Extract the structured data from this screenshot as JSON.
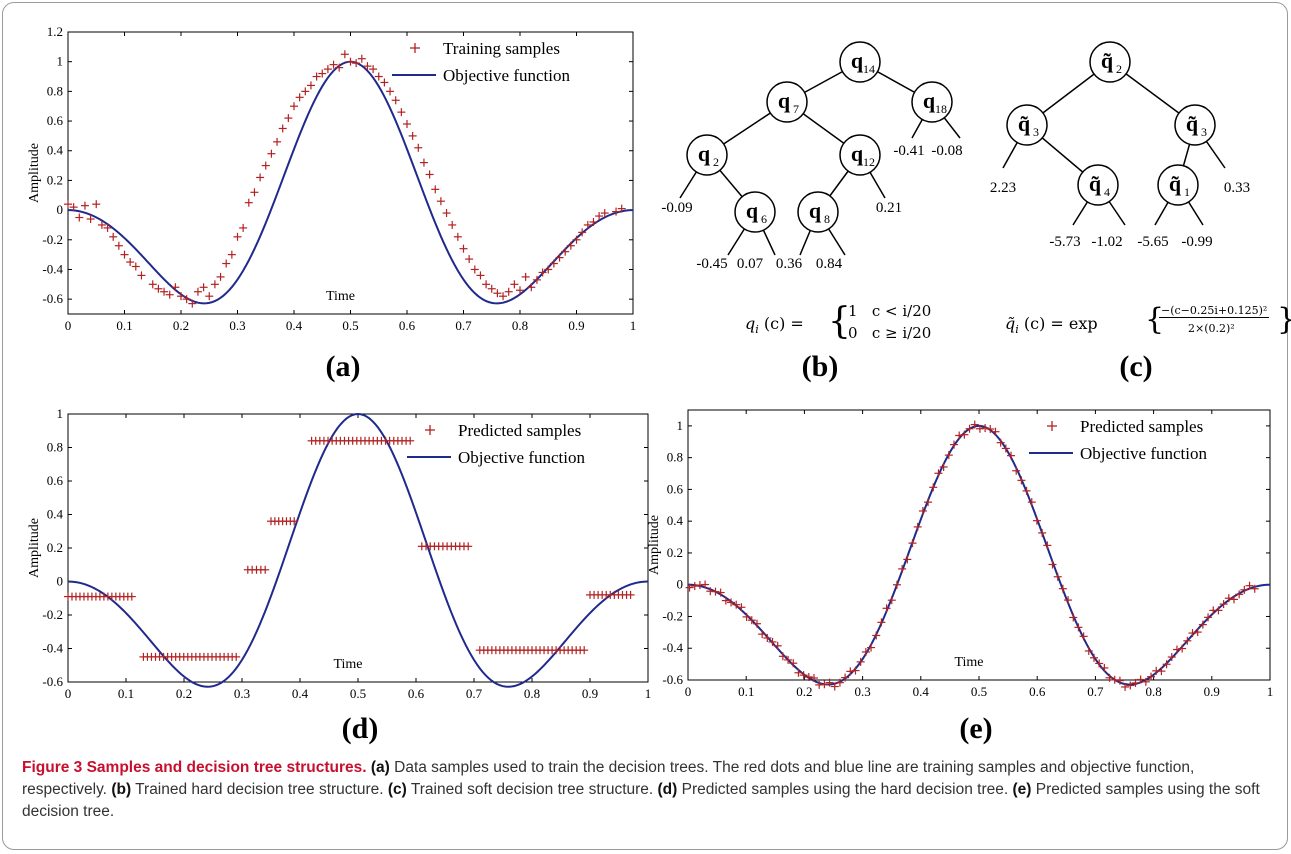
{
  "panels": {
    "a": {
      "label": "(a)"
    },
    "b": {
      "label": "(b)"
    },
    "c": {
      "label": "(c)"
    },
    "d": {
      "label": "(d)"
    },
    "e": {
      "label": "(e)"
    }
  },
  "chart_data": [
    {
      "id": "a",
      "type": "scatter",
      "xlabel": "Time",
      "ylabel": "Amplitude",
      "xlim": [
        0,
        1
      ],
      "ylim": [
        -0.7,
        1.2
      ],
      "xticks": [
        "0",
        "0.1",
        "0.2",
        "0.3",
        "0.4",
        "0.5",
        "0.6",
        "0.7",
        "0.8",
        "0.9",
        "1"
      ],
      "yticks": [
        "-0.6",
        "-0.4",
        "-0.2",
        "0",
        "0.2",
        "0.4",
        "0.6",
        "0.8",
        "1",
        "1.2"
      ],
      "legend": [
        "Training samples",
        "Objective function"
      ],
      "legend_position": "top-right",
      "series": [
        {
          "name": "Training samples",
          "marker": "+",
          "color": "#b22222",
          "points": [
            [
              0.0,
              0.04
            ],
            [
              0.01,
              0.02
            ],
            [
              0.02,
              -0.05
            ],
            [
              0.03,
              0.03
            ],
            [
              0.04,
              -0.06
            ],
            [
              0.05,
              0.04
            ],
            [
              0.06,
              -0.1
            ],
            [
              0.07,
              -0.12
            ],
            [
              0.08,
              -0.18
            ],
            [
              0.09,
              -0.24
            ],
            [
              0.1,
              -0.3
            ],
            [
              0.11,
              -0.35
            ],
            [
              0.12,
              -0.38
            ],
            [
              0.13,
              -0.44
            ],
            [
              0.15,
              -0.5
            ],
            [
              0.16,
              -0.53
            ],
            [
              0.17,
              -0.55
            ],
            [
              0.18,
              -0.57
            ],
            [
              0.19,
              -0.52
            ],
            [
              0.2,
              -0.58
            ],
            [
              0.21,
              -0.6
            ],
            [
              0.22,
              -0.63
            ],
            [
              0.23,
              -0.55
            ],
            [
              0.24,
              -0.52
            ],
            [
              0.25,
              -0.58
            ],
            [
              0.26,
              -0.5
            ],
            [
              0.27,
              -0.45
            ],
            [
              0.28,
              -0.36
            ],
            [
              0.29,
              -0.3
            ],
            [
              0.3,
              -0.18
            ],
            [
              0.31,
              -0.12
            ],
            [
              0.32,
              0.05
            ],
            [
              0.33,
              0.12
            ],
            [
              0.34,
              0.22
            ],
            [
              0.35,
              0.3
            ],
            [
              0.36,
              0.38
            ],
            [
              0.37,
              0.46
            ],
            [
              0.38,
              0.55
            ],
            [
              0.39,
              0.62
            ],
            [
              0.4,
              0.7
            ],
            [
              0.41,
              0.76
            ],
            [
              0.42,
              0.8
            ],
            [
              0.43,
              0.84
            ],
            [
              0.44,
              0.9
            ],
            [
              0.45,
              0.92
            ],
            [
              0.46,
              0.95
            ],
            [
              0.47,
              0.98
            ],
            [
              0.48,
              0.96
            ],
            [
              0.49,
              1.05
            ],
            [
              0.5,
              1.0
            ],
            [
              0.51,
              0.99
            ],
            [
              0.52,
              1.02
            ],
            [
              0.53,
              0.97
            ],
            [
              0.54,
              0.95
            ],
            [
              0.55,
              0.9
            ],
            [
              0.56,
              0.86
            ],
            [
              0.57,
              0.8
            ],
            [
              0.58,
              0.74
            ],
            [
              0.59,
              0.66
            ],
            [
              0.6,
              0.58
            ],
            [
              0.61,
              0.5
            ],
            [
              0.62,
              0.42
            ],
            [
              0.63,
              0.32
            ],
            [
              0.64,
              0.24
            ],
            [
              0.65,
              0.14
            ],
            [
              0.66,
              0.06
            ],
            [
              0.67,
              -0.02
            ],
            [
              0.68,
              -0.1
            ],
            [
              0.69,
              -0.18
            ],
            [
              0.7,
              -0.26
            ],
            [
              0.71,
              -0.33
            ],
            [
              0.72,
              -0.4
            ],
            [
              0.73,
              -0.44
            ],
            [
              0.74,
              -0.5
            ],
            [
              0.75,
              -0.53
            ],
            [
              0.76,
              -0.56
            ],
            [
              0.77,
              -0.58
            ],
            [
              0.78,
              -0.55
            ],
            [
              0.79,
              -0.5
            ],
            [
              0.8,
              -0.54
            ],
            [
              0.81,
              -0.45
            ],
            [
              0.82,
              -0.52
            ],
            [
              0.83,
              -0.47
            ],
            [
              0.84,
              -0.42
            ],
            [
              0.85,
              -0.4
            ],
            [
              0.86,
              -0.36
            ],
            [
              0.87,
              -0.32
            ],
            [
              0.88,
              -0.28
            ],
            [
              0.89,
              -0.24
            ],
            [
              0.9,
              -0.2
            ],
            [
              0.91,
              -0.15
            ],
            [
              0.92,
              -0.1
            ],
            [
              0.93,
              -0.08
            ],
            [
              0.94,
              -0.04
            ],
            [
              0.95,
              -0.02
            ],
            [
              0.97,
              -0.01
            ],
            [
              0.98,
              0.01
            ]
          ]
        },
        {
          "name": "Objective function",
          "line": true,
          "color": "#1f2a8c"
        }
      ]
    },
    {
      "id": "d",
      "type": "scatter",
      "xlabel": "Time",
      "ylabel": "Amplitude",
      "xlim": [
        0,
        1
      ],
      "ylim": [
        -0.6,
        1
      ],
      "xticks": [
        "0",
        "0.1",
        "0.2",
        "0.3",
        "0.4",
        "0.5",
        "0.6",
        "0.7",
        "0.8",
        "0.9",
        "1"
      ],
      "yticks": [
        "-0.6",
        "-0.4",
        "-0.2",
        "0",
        "0.2",
        "0.4",
        "0.6",
        "0.8",
        "1"
      ],
      "legend": [
        "Predicted samples",
        "Objective function"
      ],
      "legend_position": "top-right",
      "series": [
        {
          "name": "Predicted samples",
          "marker": "+",
          "color": "#b22222",
          "segments": [
            {
              "x0": 0.0,
              "x1": 0.11,
              "y": -0.09
            },
            {
              "x0": 0.13,
              "x1": 0.29,
              "y": -0.45
            },
            {
              "x0": 0.31,
              "x1": 0.34,
              "y": 0.07
            },
            {
              "x0": 0.35,
              "x1": 0.39,
              "y": 0.36
            },
            {
              "x0": 0.42,
              "x1": 0.59,
              "y": 0.84
            },
            {
              "x0": 0.61,
              "x1": 0.69,
              "y": 0.21
            },
            {
              "x0": 0.71,
              "x1": 0.89,
              "y": -0.41
            },
            {
              "x0": 0.9,
              "x1": 0.97,
              "y": -0.08
            }
          ]
        },
        {
          "name": "Objective function",
          "line": true,
          "color": "#1f2a8c"
        }
      ]
    },
    {
      "id": "e",
      "type": "scatter",
      "xlabel": "Time",
      "ylabel": "Amplitude",
      "xlim": [
        0,
        1
      ],
      "ylim": [
        -0.6,
        1.1
      ],
      "xticks": [
        "0",
        "0.1",
        "0.2",
        "0.3",
        "0.4",
        "0.5",
        "0.6",
        "0.7",
        "0.8",
        "0.9",
        "1"
      ],
      "yticks": [
        "-0.6",
        "-0.4",
        "-0.2",
        "0",
        "0.2",
        "0.4",
        "0.6",
        "0.8",
        "1"
      ],
      "legend": [
        "Predicted samples",
        "Objective function"
      ],
      "legend_position": "top-right",
      "series": [
        {
          "name": "Predicted samples",
          "marker": "+",
          "color": "#b22222",
          "follows_objective": true,
          "count": 110
        },
        {
          "name": "Objective function",
          "line": true,
          "color": "#1f2a8c"
        }
      ]
    }
  ],
  "tree_b": {
    "nodes": [
      {
        "id": "q14",
        "sub": "14"
      },
      {
        "id": "q7",
        "sub": "7"
      },
      {
        "id": "q18",
        "sub": "18"
      },
      {
        "id": "q2",
        "sub": "2"
      },
      {
        "id": "q12",
        "sub": "12"
      },
      {
        "id": "q6",
        "sub": "6"
      },
      {
        "id": "q8",
        "sub": "8"
      }
    ],
    "leaves": [
      "-0.09",
      "-0.45",
      "0.07",
      "0.36",
      "0.84",
      "0.21",
      "-0.41",
      "-0.08"
    ],
    "formula_lhs": "q",
    "formula_sub": "i",
    "formula_arg": "(c) =",
    "case1": "1   c < i/20",
    "case2": "0   c ≥ i/20"
  },
  "tree_c": {
    "nodes": [
      {
        "id": "t2",
        "sub": "2"
      },
      {
        "id": "t3a",
        "sub": "3"
      },
      {
        "id": "t3b",
        "sub": "3"
      },
      {
        "id": "t4",
        "sub": "4"
      },
      {
        "id": "t1",
        "sub": "1"
      }
    ],
    "leaves": [
      "2.23",
      "-5.73",
      "-1.02",
      "-5.65",
      "-0.99",
      "0.33"
    ],
    "formula_lhs": "q̃",
    "formula_sub": "i",
    "formula_mid": "(c) = exp",
    "formula_num": "−(c−0.25i+0.125)²",
    "formula_den": "2×(0.2)²"
  },
  "caption": {
    "title": "Figure 3 Samples and decision tree structures.",
    "ref_a": "(a)",
    "text_a": " Data samples used to train the decision trees. The red dots and blue line are training samples and objective function, respectively. ",
    "ref_b": "(b)",
    "text_b": " Trained hard decision tree structure. ",
    "ref_c": "(c)",
    "text_c": " Trained soft decision tree structure. ",
    "ref_d": "(d)",
    "text_d": " Predicted samples using the hard decision tree. ",
    "ref_e": "(e)",
    "text_e": " Predicted samples using the soft decision tree."
  }
}
